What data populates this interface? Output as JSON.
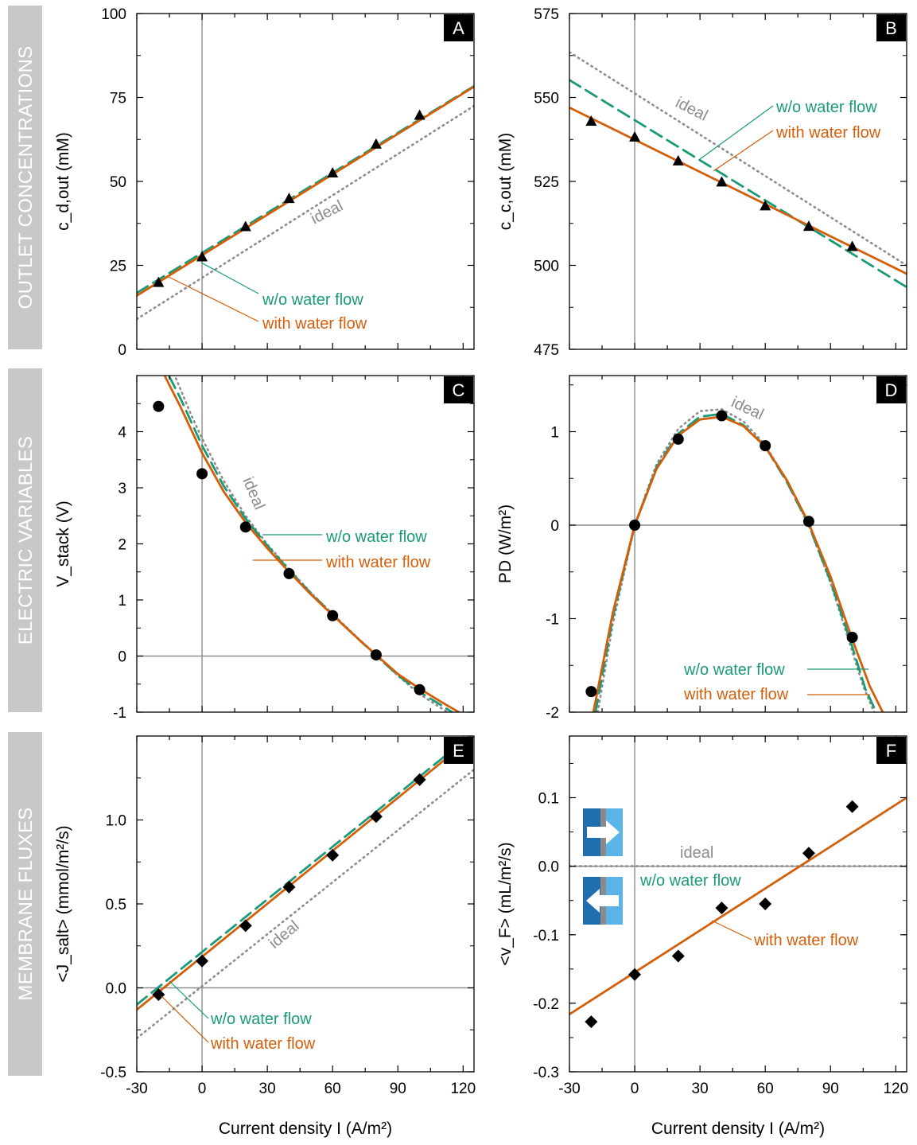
{
  "colors": {
    "with_water_flow": "#d35f0a",
    "without_water_flow": "#1a9a78",
    "ideal": "#8c8c8c",
    "markers": "#000000",
    "row_band": "#c8c8c8"
  },
  "row_labels": [
    "OUTLET CONCENTRATIONS",
    "ELECTRIC VARIABLES",
    "MEMBRANE FLUXES"
  ],
  "x_axis_title": "Current density I (A/m²)",
  "chart_data": [
    {
      "panel": "A",
      "type": "line",
      "ylabel": "c_d,out (mM)",
      "xlim": [
        -30,
        125
      ],
      "ylim": [
        0,
        100
      ],
      "xticks": [
        "-30",
        "0",
        "30",
        "60",
        "90",
        "120"
      ],
      "yticks": [
        "0",
        "25",
        "50",
        "75",
        "100"
      ],
      "marker": "triangle",
      "points": {
        "x": [
          -20,
          0,
          20,
          40,
          60,
          80,
          100
        ],
        "y": [
          20.0,
          27.6,
          36.6,
          45.0,
          52.6,
          61.2,
          69.8
        ]
      },
      "series": [
        {
          "name": "with water flow",
          "style": "solid",
          "x": [
            -30,
            125
          ],
          "y": [
            16.0,
            78.2
          ]
        },
        {
          "name": "w/o water flow",
          "style": "dashed",
          "x": [
            -30,
            125
          ],
          "y": [
            16.8,
            78.4
          ]
        },
        {
          "name": "ideal",
          "style": "dotted",
          "x": [
            -30,
            125
          ],
          "y": [
            9.0,
            72.5
          ]
        }
      ],
      "labels": {
        "ideal": "ideal",
        "without": "w/o water flow",
        "with": "with water flow"
      }
    },
    {
      "panel": "B",
      "type": "line",
      "ylabel": "c_c,out (mM)",
      "xlim": [
        -30,
        125
      ],
      "ylim": [
        475,
        575
      ],
      "xticks": [
        "-30",
        "0",
        "30",
        "60",
        "90",
        "120"
      ],
      "yticks": [
        "475",
        "500",
        "525",
        "550",
        "575"
      ],
      "marker": "triangle",
      "points": {
        "x": [
          -20,
          0,
          20,
          40,
          60,
          80,
          100
        ],
        "y": [
          543.0,
          538.3,
          531.2,
          524.9,
          517.8,
          511.7,
          505.7
        ]
      },
      "series": [
        {
          "name": "with water flow",
          "style": "solid",
          "x": [
            -30,
            125
          ],
          "y": [
            547.0,
            497.5
          ]
        },
        {
          "name": "w/o water flow",
          "style": "dashed",
          "x": [
            -30,
            125
          ],
          "y": [
            555.2,
            493.5
          ]
        },
        {
          "name": "ideal",
          "style": "dotted",
          "x": [
            -30,
            125
          ],
          "y": [
            563.5,
            500.0
          ]
        }
      ],
      "labels": {
        "ideal": "ideal",
        "without": "w/o water flow",
        "with": "with water flow"
      }
    },
    {
      "panel": "C",
      "type": "line",
      "ylabel": "V_stack (V)",
      "xlim": [
        -30,
        125
      ],
      "ylim": [
        -1,
        5
      ],
      "xticks": [
        "-30",
        "0",
        "30",
        "60",
        "90",
        "120"
      ],
      "yticks": [
        "-1",
        "0",
        "1",
        "2",
        "3",
        "4"
      ],
      "marker": "circle",
      "points": {
        "x": [
          -20,
          0,
          20,
          40,
          60,
          80,
          100
        ],
        "y": [
          4.45,
          3.25,
          2.3,
          1.47,
          0.72,
          0.02,
          -0.6
        ]
      },
      "series": [
        {
          "name": "with water flow",
          "style": "solid",
          "x": [
            -17,
            -10,
            0,
            10,
            20,
            30,
            40,
            50,
            60,
            70,
            80,
            90,
            100,
            110,
            118
          ],
          "y": [
            4.98,
            4.45,
            3.62,
            2.93,
            2.38,
            1.92,
            1.5,
            1.1,
            0.73,
            0.37,
            0.02,
            -0.32,
            -0.58,
            -0.82,
            -1.0
          ]
        },
        {
          "name": "w/o water flow",
          "style": "dashed",
          "x": [
            -15,
            -10,
            0,
            10,
            20,
            30,
            40,
            50,
            60,
            70,
            80,
            90,
            100,
            110,
            115
          ],
          "y": [
            4.98,
            4.6,
            3.75,
            3.03,
            2.45,
            1.97,
            1.53,
            1.12,
            0.74,
            0.37,
            0.01,
            -0.34,
            -0.64,
            -0.88,
            -1.0
          ]
        },
        {
          "name": "ideal",
          "style": "dotted",
          "x": [
            -12,
            -5,
            0,
            10,
            20,
            30,
            40,
            50,
            60,
            70,
            80,
            90,
            100,
            110,
            113
          ],
          "y": [
            4.95,
            4.3,
            3.88,
            3.12,
            2.5,
            1.99,
            1.55,
            1.13,
            0.75,
            0.38,
            0.01,
            -0.35,
            -0.68,
            -0.93,
            -1.0
          ]
        }
      ],
      "labels": {
        "ideal": "ideal",
        "without": "w/o water flow",
        "with": "with water flow"
      }
    },
    {
      "panel": "D",
      "type": "line",
      "ylabel": "PD (W/m²)",
      "xlim": [
        -30,
        125
      ],
      "ylim": [
        -2,
        1.6
      ],
      "xticks": [
        "-30",
        "0",
        "30",
        "60",
        "90",
        "120"
      ],
      "yticks": [
        "-2",
        "-1",
        "0",
        "1"
      ],
      "marker": "circle",
      "points": {
        "x": [
          -20,
          0,
          20,
          40,
          60,
          80,
          100
        ],
        "y": [
          -1.78,
          0.0,
          0.92,
          1.17,
          0.85,
          0.04,
          -1.2
        ]
      },
      "series": [
        {
          "name": "with water flow",
          "style": "solid",
          "x": [
            -19,
            -10,
            0,
            10,
            20,
            30,
            40,
            50,
            60,
            70,
            80,
            90,
            100,
            108,
            114
          ],
          "y": [
            -2.0,
            -0.93,
            0.0,
            0.6,
            0.96,
            1.13,
            1.16,
            1.06,
            0.84,
            0.48,
            0.02,
            -0.55,
            -1.22,
            -1.72,
            -2.0
          ]
        },
        {
          "name": "w/o water flow",
          "style": "dashed",
          "x": [
            -18,
            -10,
            0,
            10,
            20,
            30,
            40,
            50,
            60,
            70,
            80,
            90,
            100,
            106,
            111
          ],
          "y": [
            -2.0,
            -0.98,
            0.0,
            0.62,
            0.98,
            1.16,
            1.19,
            1.07,
            0.84,
            0.46,
            0.0,
            -0.6,
            -1.3,
            -1.75,
            -2.0
          ]
        },
        {
          "name": "ideal",
          "style": "dotted",
          "x": [
            -17,
            -10,
            0,
            10,
            20,
            30,
            40,
            50,
            60,
            70,
            80,
            90,
            100,
            105,
            110
          ],
          "y": [
            -2.0,
            -1.05,
            0.0,
            0.65,
            1.03,
            1.22,
            1.24,
            1.11,
            0.86,
            0.47,
            0.0,
            -0.62,
            -1.35,
            -1.72,
            -2.0
          ]
        }
      ],
      "labels": {
        "ideal": "ideal",
        "without": "w/o water flow",
        "with": "with water flow"
      }
    },
    {
      "panel": "E",
      "type": "line",
      "ylabel": "<J_salt> (mmol/m²/s)",
      "xlim": [
        -30,
        125
      ],
      "ylim": [
        -0.5,
        1.5
      ],
      "xticks": [
        "-30",
        "0",
        "30",
        "60",
        "90",
        "120"
      ],
      "yticks": [
        "-0.5",
        "0.0",
        "0.5",
        "1.0"
      ],
      "marker": "diamond",
      "points": {
        "x": [
          -20,
          0,
          20,
          40,
          60,
          80,
          100
        ],
        "y": [
          -0.04,
          0.16,
          0.37,
          0.6,
          0.79,
          1.02,
          1.24
        ]
      },
      "series": [
        {
          "name": "with water flow",
          "style": "solid",
          "x": [
            -30,
            125
          ],
          "y": [
            -0.13,
            1.5
          ]
        },
        {
          "name": "w/o water flow",
          "style": "dashed",
          "x": [
            -30,
            125
          ],
          "y": [
            -0.1,
            1.52
          ]
        },
        {
          "name": "ideal",
          "style": "dotted",
          "x": [
            -30,
            125
          ],
          "y": [
            -0.3,
            1.3
          ]
        }
      ],
      "labels": {
        "ideal": "ideal",
        "without": "w/o water flow",
        "with": "with water flow"
      }
    },
    {
      "panel": "F",
      "type": "line",
      "ylabel": "<v_F> (mL/m²/s)",
      "xlim": [
        -30,
        125
      ],
      "ylim": [
        -0.3,
        0.19
      ],
      "xticks": [
        "-30",
        "0",
        "30",
        "60",
        "90",
        "120"
      ],
      "yticks": [
        "-0.3",
        "-0.2",
        "-0.1",
        "0.0",
        "0.1"
      ],
      "marker": "diamond",
      "points": {
        "x": [
          -20,
          0,
          20,
          40,
          60,
          80,
          100
        ],
        "y": [
          -0.227,
          -0.158,
          -0.131,
          -0.061,
          -0.055,
          0.019,
          0.087
        ]
      },
      "series": [
        {
          "name": "with water flow",
          "style": "solid",
          "x": [
            -30,
            125
          ],
          "y": [
            -0.216,
            0.1
          ]
        },
        {
          "name": "ideal",
          "style": "dotted",
          "x": [
            -30,
            125
          ],
          "y": [
            0.0,
            0.0
          ]
        }
      ],
      "labels": {
        "ideal": "ideal",
        "without": "w/o water flow",
        "with": "with water flow"
      }
    }
  ]
}
